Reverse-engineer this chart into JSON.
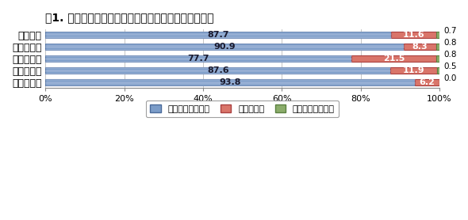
{
  "title": "図1. 原材料や光熱等の価格変動によるコストへの影響",
  "categories": [
    "食品産業",
    "（製造業）",
    "（卸売業）",
    "（小売業）",
    "（飲食業）"
  ],
  "values_up": [
    87.7,
    90.9,
    77.7,
    87.6,
    93.8
  ],
  "values_same": [
    11.6,
    8.3,
    21.5,
    11.9,
    6.2
  ],
  "values_down": [
    0.7,
    0.8,
    0.8,
    0.5,
    0.0
  ],
  "color_up": "#7B9CC8",
  "color_up_dark": "#4A6A9A",
  "color_same": "#D9756A",
  "color_same_dark": "#AA4040",
  "color_down": "#8BAD6B",
  "color_down_dark": "#5A8040",
  "legend_labels": [
    "コストが上がった",
    "変わらない",
    "コストが下がった"
  ],
  "xlabel_ticks": [
    "0%",
    "20%",
    "40%",
    "60%",
    "80%",
    "100%"
  ],
  "title_fontsize": 10,
  "bar_fontsize": 8,
  "label_fontsize": 9,
  "tick_fontsize": 8
}
